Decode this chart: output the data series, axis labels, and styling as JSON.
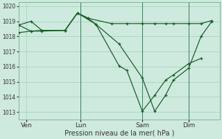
{
  "bg_color": "#ceeade",
  "grid_color": "#9ecfb8",
  "line_color": "#1a5c2a",
  "xlabel": "Pression niveau de la mer( hPa )",
  "ylim": [
    1012.5,
    1020.25
  ],
  "yticks": [
    1013,
    1014,
    1015,
    1016,
    1017,
    1018,
    1019,
    1020
  ],
  "xtick_labels": [
    "Ven",
    "Lun",
    "Sam",
    "Dim"
  ],
  "xtick_positions": [
    0.5,
    4.0,
    8.0,
    11.0
  ],
  "vline_positions": [
    4.0,
    8.0,
    11.0
  ],
  "xlim": [
    0,
    13.0
  ],
  "series1_x": [
    0.0,
    0.8,
    1.5,
    3.0,
    3.8,
    4.5,
    5.0,
    6.5,
    7.0,
    8.0,
    8.8,
    9.5,
    10.0,
    11.0,
    11.8
  ],
  "series1_y": [
    1018.75,
    1019.0,
    1018.4,
    1018.4,
    1019.55,
    1019.2,
    1018.8,
    1016.05,
    1015.75,
    1013.05,
    1014.1,
    1015.1,
    1015.45,
    1016.2,
    1016.55
  ],
  "series2_x": [
    0.0,
    0.8,
    1.5,
    3.0,
    3.8,
    5.0,
    6.5,
    8.0,
    8.8,
    9.5,
    10.0,
    11.0,
    11.8,
    12.5
  ],
  "series2_y": [
    1018.25,
    1018.35,
    1018.4,
    1018.4,
    1019.55,
    1018.8,
    1017.5,
    1015.25,
    1013.05,
    1014.1,
    1015.1,
    1015.9,
    1018.0,
    1019.0
  ],
  "series3_x": [
    0.0,
    0.8,
    1.5,
    3.0,
    3.8,
    4.5,
    6.0,
    7.0,
    8.0,
    8.8,
    9.5,
    10.0,
    11.0,
    11.8,
    12.5
  ],
  "series3_y": [
    1018.75,
    1018.35,
    1018.35,
    1018.4,
    1019.55,
    1019.2,
    1018.85,
    1018.85,
    1018.85,
    1018.85,
    1018.85,
    1018.85,
    1018.85,
    1018.85,
    1019.05
  ]
}
